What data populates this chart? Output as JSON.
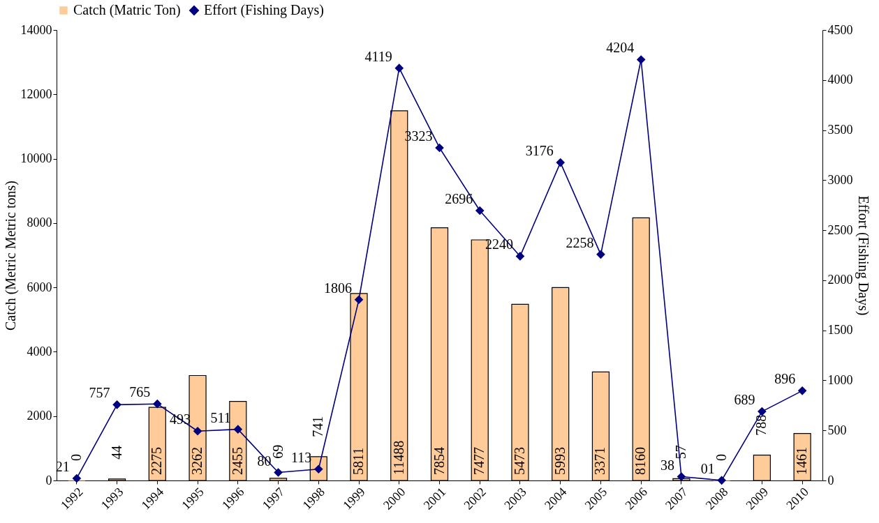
{
  "chart_data": {
    "type": "bar",
    "xlabel": null,
    "ylabel": "Catch (Metric Metric tons)",
    "y2label": "Effort (Fishing Days)",
    "categories": [
      "1992",
      "1993",
      "1994",
      "1995",
      "1996",
      "1997",
      "1998",
      "1999",
      "2000",
      "2001",
      "2002",
      "2003",
      "2004",
      "2005",
      "2006",
      "2007",
      "2008",
      "2009",
      "2010"
    ],
    "series": [
      {
        "name": "Catch (Matric Ton)",
        "color": "#ffcc99",
        "values": [
          0,
          44,
          2275,
          3262,
          2455,
          69,
          741,
          5811,
          11488,
          7854,
          7477,
          5473,
          5993,
          3371,
          8160,
          57,
          0,
          788,
          1461
        ]
      },
      {
        "name": "Effort (Fishing Days)",
        "type": "line",
        "axis": "y2",
        "color": "#000080",
        "marker": "diamond",
        "values": [
          21,
          757,
          765,
          493,
          511,
          80,
          113,
          1806,
          4119,
          3323,
          2696,
          2240,
          3176,
          2258,
          4204,
          38,
          1,
          689,
          896
        ],
        "value_labels": [
          "21",
          "757",
          "765",
          "493",
          "511",
          "80",
          "113",
          "1806",
          "4119",
          "3323",
          "2696",
          "2240",
          "3176",
          "2258",
          "4204",
          "38",
          "01",
          "689",
          "896"
        ]
      }
    ],
    "data_labels": true,
    "ylim": [
      0,
      14000
    ],
    "yticks": [
      0,
      2000,
      4000,
      6000,
      8000,
      10000,
      12000,
      14000
    ],
    "y2lim": [
      0,
      4500
    ],
    "y2ticks": [
      0,
      500,
      1000,
      1500,
      2000,
      2500,
      3000,
      3500,
      4000,
      4500
    ],
    "legend": "top",
    "grid": false
  }
}
